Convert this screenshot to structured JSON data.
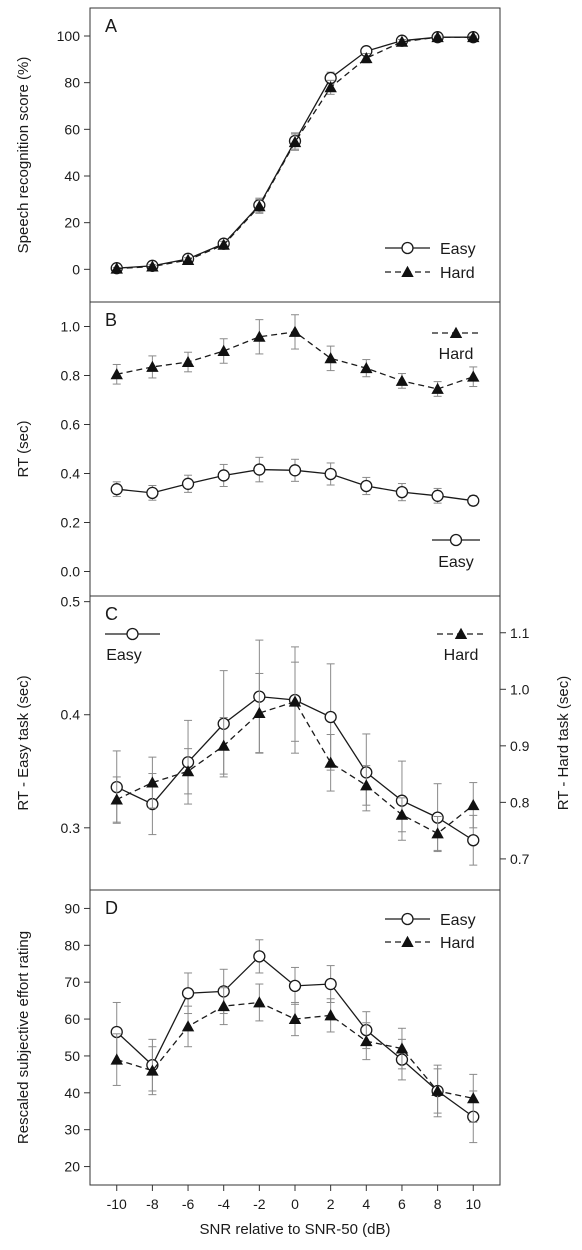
{
  "chart_data": {
    "type": "line",
    "x": [
      -10,
      -8,
      -6,
      -4,
      -2,
      0,
      2,
      4,
      6,
      8,
      10
    ],
    "xtick_labels": [
      "-10",
      "-8",
      "-6",
      "-4",
      "-2",
      "0",
      "2",
      "4",
      "6",
      "8",
      "10"
    ],
    "xlabel": "SNR relative to SNR-50 (dB)",
    "xlim": [
      -11.5,
      11.5
    ],
    "panels": [
      {
        "letter": "A",
        "ylabel": "Speech recognition score (%)",
        "ylim": [
          -14,
          112
        ],
        "yticks": [
          0,
          20,
          40,
          60,
          80,
          100
        ],
        "ytick_labels": [
          "0",
          "20",
          "40",
          "60",
          "80",
          "100"
        ],
        "legend_position": "bottom-right",
        "series": [
          {
            "name": "Easy",
            "marker": "circle",
            "line": "solid",
            "values": [
              0.5,
              1.5,
              4.5,
              11,
              27.5,
              55,
              82,
              93.5,
              98,
              99.5,
              99.5
            ],
            "errors": [
              0.5,
              0.8,
              1,
              1.5,
              3,
              3.5,
              2.5,
              1.5,
              1,
              0.5,
              0.5
            ]
          },
          {
            "name": "Hard",
            "marker": "triangle",
            "line": "dashed",
            "values": [
              0.3,
              1.2,
              4,
              10.5,
              27,
              54.5,
              78,
              90.5,
              97.5,
              99.5,
              99.5
            ],
            "errors": [
              0.5,
              0.8,
              1,
              1.5,
              3,
              3.5,
              3,
              2,
              1,
              0.5,
              0.5
            ]
          }
        ]
      },
      {
        "letter": "B",
        "ylabel": "RT (sec)",
        "ylim": [
          -0.1,
          1.1
        ],
        "yticks": [
          0.0,
          0.2,
          0.4,
          0.6,
          0.8,
          1.0
        ],
        "ytick_labels": [
          "0.0",
          "0.2",
          "0.4",
          "0.6",
          "0.8",
          "1.0"
        ],
        "legend_position": "split: Hard top-right, Easy bottom-right",
        "series": [
          {
            "name": "Easy",
            "marker": "circle",
            "line": "solid",
            "values": [
              0.336,
              0.321,
              0.358,
              0.392,
              0.416,
              0.413,
              0.398,
              0.349,
              0.324,
              0.309,
              0.289
            ],
            "errors": [
              0.03,
              0.03,
              0.035,
              0.045,
              0.05,
              0.045,
              0.045,
              0.035,
              0.035,
              0.03,
              0.02
            ]
          },
          {
            "name": "Hard",
            "marker": "triangle",
            "line": "dashed",
            "values": [
              0.805,
              0.835,
              0.855,
              0.9,
              0.958,
              0.978,
              0.87,
              0.83,
              0.778,
              0.745,
              0.795
            ],
            "errors": [
              0.04,
              0.045,
              0.04,
              0.05,
              0.07,
              0.07,
              0.05,
              0.035,
              0.03,
              0.03,
              0.04
            ]
          }
        ]
      },
      {
        "letter": "C",
        "ylabel": "RT - Easy task (sec)",
        "ylabel_right": "RT - Hard task (sec)",
        "ylim": [
          0.245,
          0.505
        ],
        "ylim_right": [
          0.645,
          1.165
        ],
        "yticks": [
          0.3,
          0.4,
          0.5
        ],
        "ytick_labels": [
          "0.3",
          "0.4",
          "0.5"
        ],
        "yticks_right": [
          0.7,
          0.8,
          0.9,
          1.0,
          1.1
        ],
        "ytick_labels_right": [
          "0.7",
          "0.8",
          "0.9",
          "1.0",
          "1.1"
        ],
        "legend_position": "split: Easy top-left, Hard top-right",
        "series": [
          {
            "name": "Easy",
            "axis": "left",
            "marker": "circle",
            "line": "solid",
            "values": [
              0.336,
              0.321,
              0.358,
              0.392,
              0.416,
              0.413,
              0.398,
              0.349,
              0.324,
              0.309,
              0.289
            ],
            "errors": [
              0.032,
              0.027,
              0.037,
              0.047,
              0.05,
              0.047,
              0.047,
              0.034,
              0.035,
              0.03,
              0.022
            ]
          },
          {
            "name": "Hard",
            "axis": "right",
            "marker": "triangle",
            "line": "dashed",
            "values": [
              0.805,
              0.835,
              0.855,
              0.9,
              0.958,
              0.978,
              0.87,
              0.83,
              0.778,
              0.745,
              0.795
            ],
            "errors": [
              0.04,
              0.045,
              0.04,
              0.05,
              0.07,
              0.07,
              0.05,
              0.035,
              0.03,
              0.03,
              0.04
            ]
          }
        ]
      },
      {
        "letter": "D",
        "ylabel": "Rescaled subjective effort rating",
        "ylim": [
          15,
          95
        ],
        "yticks": [
          20,
          30,
          40,
          50,
          60,
          70,
          80,
          90
        ],
        "ytick_labels": [
          "20",
          "30",
          "40",
          "50",
          "60",
          "70",
          "80",
          "90"
        ],
        "legend_position": "top-right",
        "series": [
          {
            "name": "Easy",
            "marker": "circle",
            "line": "solid",
            "values": [
              56.5,
              47.5,
              67,
              67.5,
              77,
              69,
              69.5,
              57,
              49,
              40.5,
              33.5
            ],
            "errors": [
              8,
              7,
              5.5,
              6,
              4.5,
              5,
              5,
              5,
              5.5,
              7,
              7
            ]
          },
          {
            "name": "Hard",
            "marker": "triangle",
            "line": "dashed",
            "values": [
              49,
              46,
              58,
              63.5,
              64.5,
              60,
              61,
              54,
              52,
              40.5,
              38.5
            ],
            "errors": [
              7,
              6.5,
              5.5,
              5,
              5,
              4.5,
              4.5,
              5,
              5.5,
              6,
              6.5
            ]
          }
        ]
      }
    ]
  }
}
